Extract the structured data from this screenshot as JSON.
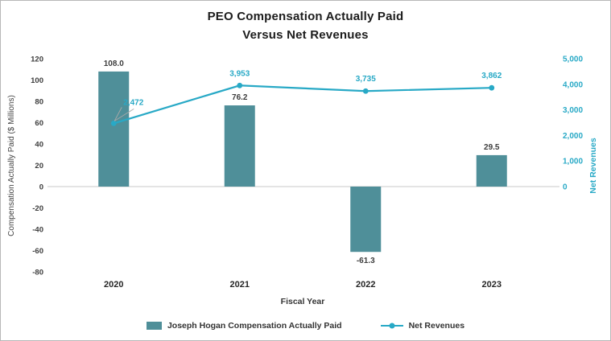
{
  "title": {
    "line1": "PEO Compensation Actually Paid",
    "line2": "Versus Net Revenues"
  },
  "axes": {
    "left_label": "Compensation Actually Paid ($ Millions)",
    "right_label": "Net Revenues",
    "x_label": "Fiscal Year"
  },
  "legend": {
    "items": [
      {
        "label": "Joseph Hogan Compensation Actually Paid",
        "type": "bar"
      },
      {
        "label": "Net Revenues",
        "type": "line"
      }
    ]
  },
  "colors": {
    "bar": "#4f8f99",
    "line": "#28a9c6",
    "grid": "#c9c9c9",
    "leader": "#a8a8a8"
  },
  "chart_data": {
    "type": "combo",
    "categories": [
      "2020",
      "2021",
      "2022",
      "2023"
    ],
    "series": [
      {
        "name": "Joseph Hogan Compensation Actually Paid",
        "type": "bar",
        "axis": "left",
        "values": [
          108.0,
          76.2,
          -61.3,
          29.5
        ],
        "labels": [
          "108.0",
          "76.2",
          "-61.3",
          "29.5"
        ]
      },
      {
        "name": "Net Revenues",
        "type": "line",
        "axis": "right",
        "values": [
          2472,
          3953,
          3735,
          3862
        ],
        "labels": [
          "2,472",
          "3,953",
          "3,735",
          "3,862"
        ]
      }
    ],
    "title": "PEO Compensation Actually Paid Versus Net Revenues",
    "xlabel": "Fiscal Year",
    "left_axis": {
      "min": -80,
      "max": 120,
      "step": 20,
      "ticks": [
        {
          "value": 120,
          "label": "120"
        },
        {
          "value": 100,
          "label": "100"
        },
        {
          "value": 80,
          "label": "80"
        },
        {
          "value": 60,
          "label": "60"
        },
        {
          "value": 40,
          "label": "40"
        },
        {
          "value": 20,
          "label": "20"
        },
        {
          "value": 0,
          "label": "0"
        },
        {
          "value": -20,
          "label": "-20"
        },
        {
          "value": -40,
          "label": "-40"
        },
        {
          "value": -60,
          "label": "-60"
        },
        {
          "value": -80,
          "label": "-80"
        }
      ]
    },
    "right_axis": {
      "min": 0,
      "max": 5000,
      "step": 1000,
      "ticks": [
        {
          "value": 5000,
          "label": "5,000"
        },
        {
          "value": 4000,
          "label": "4,000"
        },
        {
          "value": 3000,
          "label": "3,000"
        },
        {
          "value": 2000,
          "label": "2,000"
        },
        {
          "value": 1000,
          "label": "1,000"
        },
        {
          "value": 0,
          "label": "0"
        }
      ]
    },
    "grid": "zero-line-only",
    "legend_position": "bottom"
  }
}
